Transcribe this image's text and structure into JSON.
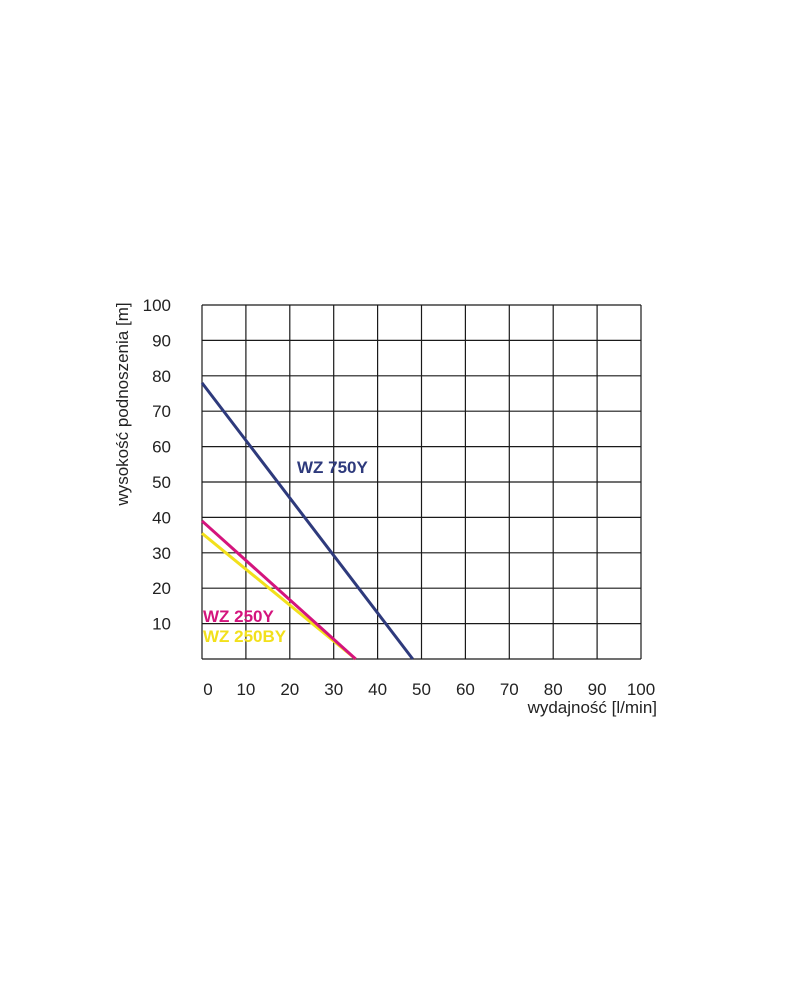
{
  "chart_data": {
    "type": "line",
    "title": "",
    "xlabel": "wydajność [l/min]",
    "ylabel": "wysokość podnoszenia [m]",
    "xlim": [
      0,
      100
    ],
    "ylim": [
      0,
      100
    ],
    "x_ticks": [
      0,
      10,
      20,
      30,
      40,
      50,
      60,
      70,
      80,
      90,
      100
    ],
    "x_tick_labels": [
      "0",
      "10",
      "20",
      "30",
      "40",
      "50",
      "60",
      "70",
      "80",
      "90",
      "100"
    ],
    "y_ticks": [
      10,
      20,
      30,
      40,
      50,
      60,
      70,
      80,
      90,
      100
    ],
    "y_tick_labels": [
      "10",
      "20",
      "30",
      "40",
      "50",
      "60",
      "70",
      "80",
      "90",
      "100"
    ],
    "grid": true,
    "series": [
      {
        "name": "WZ 750Y",
        "color": "#2e3a7c",
        "x": [
          0,
          48
        ],
        "y": [
          78,
          0
        ]
      },
      {
        "name": "WZ 250Y",
        "color": "#d4147d",
        "x": [
          0,
          35
        ],
        "y": [
          39,
          0
        ]
      },
      {
        "name": "WZ 250BY",
        "color": "#f2e01b",
        "x": [
          0,
          35
        ],
        "y": [
          35.5,
          0
        ]
      }
    ]
  }
}
